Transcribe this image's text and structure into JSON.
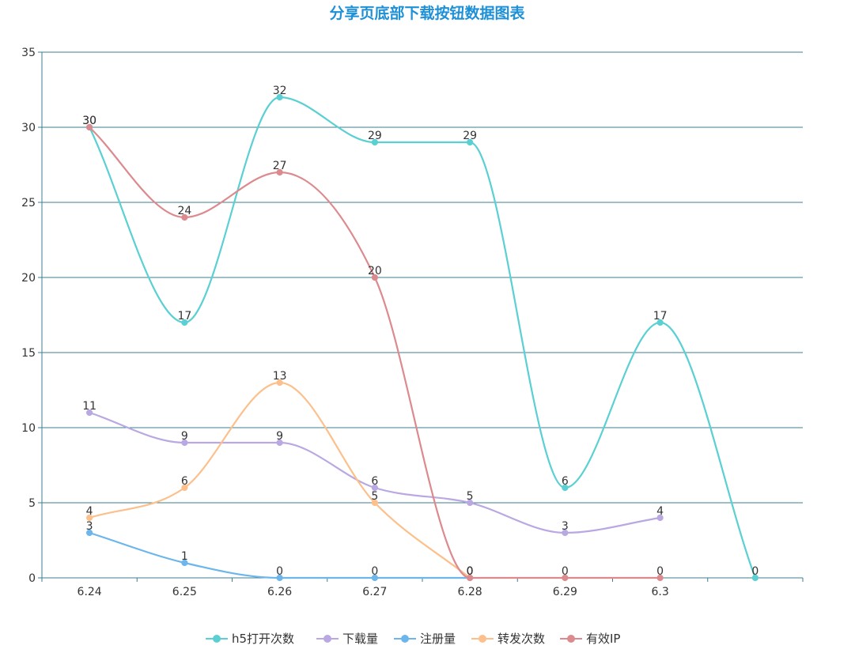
{
  "chart_data": {
    "type": "line",
    "title": "分享页底部下载按钮数据图表",
    "title_color": "#1e90d6",
    "xlabel": "",
    "ylabel": "",
    "categories": [
      "6.24",
      "6.25",
      "6.26",
      "6.27",
      "6.28",
      "6.29",
      "6.3",
      ""
    ],
    "ylim": [
      0,
      35
    ],
    "yticks": [
      0,
      5,
      10,
      15,
      20,
      25,
      30,
      35
    ],
    "grid": true,
    "smooth": true,
    "legend_position": "bottom-center",
    "series": [
      {
        "name": "h5打开次数",
        "color": "#5ad0d3",
        "values": [
          30,
          17,
          32,
          29,
          29,
          6,
          17,
          0
        ]
      },
      {
        "name": "下载量",
        "color": "#b9a8e1",
        "values": [
          11,
          9,
          9,
          6,
          5,
          3,
          4,
          null
        ]
      },
      {
        "name": "注册量",
        "color": "#6cb6ec",
        "values": [
          3,
          1,
          0,
          0,
          0,
          null,
          null,
          null
        ]
      },
      {
        "name": "转发次数",
        "color": "#fcc08c",
        "values": [
          4,
          6,
          13,
          5,
          0,
          null,
          null,
          null
        ]
      },
      {
        "name": "有效IP",
        "color": "#dc8a8e",
        "values": [
          30,
          24,
          27,
          20,
          0,
          0,
          0,
          null
        ]
      }
    ]
  }
}
